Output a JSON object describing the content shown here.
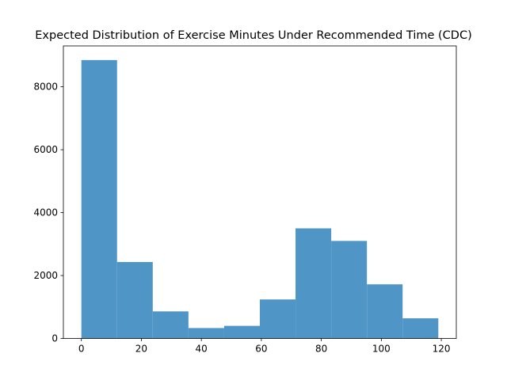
{
  "chart_data": {
    "type": "bar",
    "title": "Expected Distribution of Exercise Minutes Under Recommended Time (CDC)",
    "xlabel": "",
    "ylabel": "",
    "bin_edges": [
      0,
      11.9,
      23.8,
      35.7,
      47.6,
      59.5,
      71.4,
      83.3,
      95.2,
      107.1,
      119
    ],
    "values": [
      8850,
      2430,
      860,
      330,
      400,
      1240,
      3500,
      3100,
      1720,
      640
    ],
    "xlim": [
      -6,
      125
    ],
    "ylim": [
      0,
      9300
    ],
    "xticks": [
      0,
      20,
      40,
      60,
      80,
      100,
      120
    ],
    "yticks": [
      0,
      2000,
      4000,
      6000,
      8000
    ],
    "bar_color": "#4f96c6",
    "grid": false,
    "legend": "none"
  }
}
